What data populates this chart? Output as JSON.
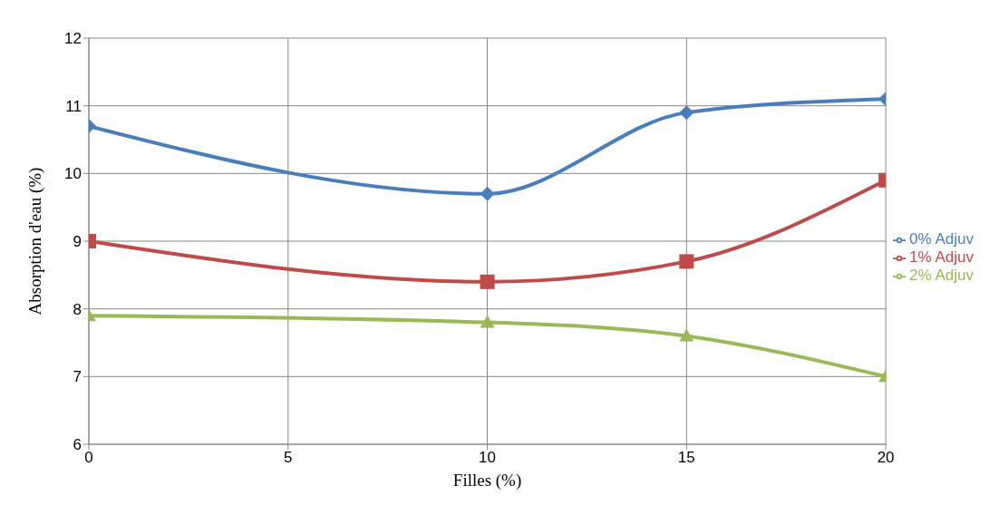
{
  "chart_data": {
    "type": "line",
    "xlabel": "Filles (%)",
    "ylabel": "Absorption d'eau  (%)",
    "x": [
      0,
      10,
      15,
      20
    ],
    "series": [
      {
        "name": "0% Adjuv",
        "color": "#4a7ebb",
        "marker": "diamond",
        "values": [
          10.7,
          9.7,
          10.9,
          11.1
        ]
      },
      {
        "name": "1% Adjuv",
        "color": "#be4b48",
        "marker": "square",
        "values": [
          9.0,
          8.4,
          8.7,
          9.9
        ]
      },
      {
        "name": "2% Adjuv",
        "color": "#98b954",
        "marker": "triangle",
        "values": [
          7.9,
          7.8,
          7.6,
          7.0
        ]
      }
    ],
    "xlim": [
      0,
      20
    ],
    "xticks": [
      0,
      5,
      10,
      15,
      20
    ],
    "ylim": [
      6,
      12
    ],
    "yticks": [
      6,
      7,
      8,
      9,
      10,
      11,
      12
    ],
    "grid": true,
    "legend": "right",
    "line_style": "solid"
  }
}
